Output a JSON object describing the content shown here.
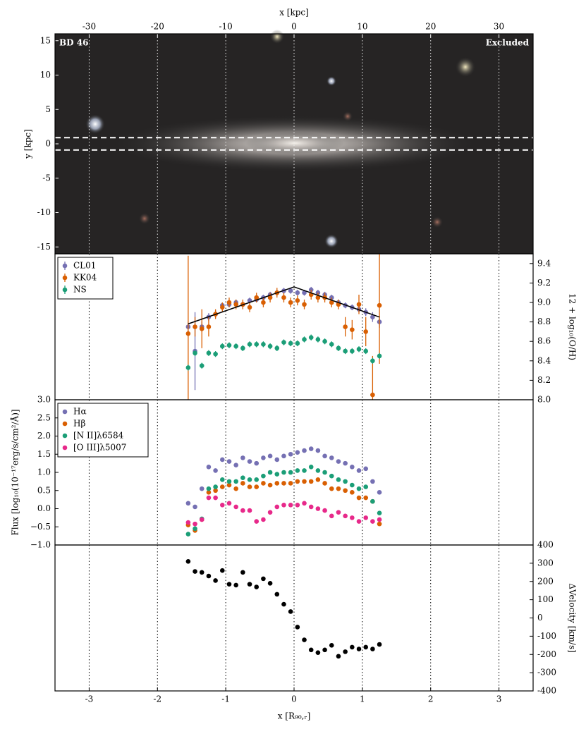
{
  "chart_data": [
    {
      "type": "image",
      "object": "BD 46",
      "status": "Excluded",
      "xlabel": "x [kpc]",
      "ylabel": "y [kpc]",
      "xlim": [
        -35,
        35
      ],
      "xticks": [
        -30,
        -20,
        -10,
        0,
        10,
        20,
        30
      ],
      "ylim": [
        -16,
        16
      ],
      "yticks": [
        -15,
        -10,
        -5,
        0,
        5,
        10,
        15
      ],
      "aperture_y": [
        -0.9,
        0.9
      ],
      "grid": true
    },
    {
      "type": "errorbar",
      "ylabel": "12 + log₁₀(O/H)",
      "yaxis": "right",
      "legend": "upper left",
      "ylim": [
        8.0,
        9.5
      ],
      "yticks": [
        {
          "value": 8.0,
          "label": "8.0"
        },
        8.2,
        8.4,
        8.6,
        8.8,
        {
          "value": 9.0,
          "label": "9.0"
        },
        9.2,
        9.4
      ],
      "x": [
        -1.55,
        -1.45,
        -1.35,
        -1.25,
        -1.15,
        -1.05,
        -0.95,
        -0.85,
        -0.75,
        -0.65,
        -0.55,
        -0.45,
        -0.35,
        -0.25,
        -0.15,
        -0.05,
        0.05,
        0.15,
        0.25,
        0.35,
        0.45,
        0.55,
        0.65,
        0.75,
        0.85,
        0.95,
        1.05,
        1.15,
        1.25
      ],
      "series": [
        {
          "name": "CL01",
          "color": "#7570b3",
          "values": [
            8.75,
            8.5,
            8.75,
            8.85,
            8.88,
            8.97,
            8.98,
            9.0,
            8.98,
            9.02,
            9.03,
            9.05,
            9.08,
            9.1,
            9.12,
            9.12,
            9.1,
            9.1,
            9.13,
            9.1,
            9.08,
            9.05,
            9.0,
            8.97,
            8.95,
            8.93,
            8.9,
            8.85,
            8.8
          ],
          "errors": [
            0.05,
            0.4,
            0.05,
            0.04,
            0.04,
            0.03,
            0.03,
            0.03,
            0.03,
            0.03,
            0.03,
            0.03,
            0.03,
            0.03,
            0.03,
            0.03,
            0.03,
            0.03,
            0.03,
            0.03,
            0.03,
            0.03,
            0.03,
            0.03,
            0.03,
            0.03,
            0.04,
            0.05,
            0.06
          ]
        },
        {
          "name": "KK04",
          "color": "#d95f02",
          "values": [
            8.68,
            8.75,
            8.73,
            8.75,
            8.88,
            8.95,
            9.0,
            8.98,
            8.98,
            8.95,
            9.05,
            9.0,
            9.05,
            9.1,
            9.05,
            9.0,
            9.02,
            8.98,
            9.08,
            9.05,
            9.05,
            9.0,
            8.98,
            8.75,
            8.72,
            8.98,
            8.7,
            8.05,
            8.97
          ],
          "errors": [
            0.8,
            0.1,
            0.2,
            0.1,
            0.05,
            0.05,
            0.05,
            0.05,
            0.05,
            0.05,
            0.05,
            0.05,
            0.05,
            0.05,
            0.05,
            0.05,
            0.05,
            0.05,
            0.05,
            0.05,
            0.05,
            0.05,
            0.05,
            0.1,
            0.1,
            0.1,
            0.15,
            0.4,
            0.6
          ]
        },
        {
          "name": "NS",
          "color": "#1b9e77",
          "values": [
            8.33,
            8.48,
            8.35,
            8.48,
            8.47,
            8.55,
            8.56,
            8.55,
            8.53,
            8.57,
            8.57,
            8.57,
            8.55,
            8.53,
            8.59,
            8.58,
            8.58,
            8.62,
            8.64,
            8.62,
            8.6,
            8.57,
            8.53,
            8.5,
            8.5,
            8.52,
            8.5,
            8.4,
            8.45
          ],
          "errors": [
            0.03,
            0.03,
            0.03,
            0.03,
            0.03,
            0.03,
            0.03,
            0.03,
            0.03,
            0.03,
            0.03,
            0.03,
            0.03,
            0.03,
            0.03,
            0.03,
            0.03,
            0.03,
            0.03,
            0.03,
            0.03,
            0.03,
            0.03,
            0.03,
            0.03,
            0.03,
            0.03,
            0.03,
            0.03
          ]
        }
      ],
      "fit": {
        "color": "#000000",
        "x": [
          -1.55,
          0,
          1.25
        ],
        "values": [
          8.78,
          9.16,
          8.85
        ]
      }
    },
    {
      "type": "scatter",
      "ylabel": "Flux [log₁₀(10⁻¹⁷erg/s/cm²/Å)]",
      "yaxis": "left",
      "legend": "upper left",
      "ylim": [
        -1.0,
        3.0
      ],
      "yticks": [
        {
          "value": -1.0,
          "label": "−1.0"
        },
        {
          "value": -0.5,
          "label": "−0.5"
        },
        {
          "value": 0.0,
          "label": "0.0"
        },
        0.5,
        {
          "value": 1.0,
          "label": "1.0"
        },
        1.5,
        {
          "value": 2.0,
          "label": "2.0"
        },
        2.5,
        {
          "value": 3.0,
          "label": "3.0"
        }
      ],
      "x": [
        -1.55,
        -1.45,
        -1.35,
        -1.25,
        -1.15,
        -1.05,
        -0.95,
        -0.85,
        -0.75,
        -0.65,
        -0.55,
        -0.45,
        -0.35,
        -0.25,
        -0.15,
        -0.05,
        0.05,
        0.15,
        0.25,
        0.35,
        0.45,
        0.55,
        0.65,
        0.75,
        0.85,
        0.95,
        1.05,
        1.15,
        1.25
      ],
      "series": [
        {
          "name": "Hα",
          "color": "#7570b3",
          "values": [
            0.15,
            0.05,
            0.55,
            1.15,
            1.05,
            1.35,
            1.3,
            1.2,
            1.4,
            1.3,
            1.25,
            1.4,
            1.45,
            1.35,
            1.45,
            1.5,
            1.55,
            1.6,
            1.65,
            1.6,
            1.45,
            1.4,
            1.3,
            1.25,
            1.15,
            1.05,
            1.1,
            0.75,
            0.45
          ]
        },
        {
          "name": "Hβ",
          "color": "#d95f02",
          "values": [
            -0.45,
            -0.6,
            -0.3,
            0.45,
            0.5,
            0.6,
            0.65,
            0.55,
            0.7,
            0.6,
            0.6,
            0.7,
            0.65,
            0.7,
            0.7,
            0.7,
            0.75,
            0.75,
            0.75,
            0.8,
            0.7,
            0.55,
            0.55,
            0.5,
            0.45,
            0.3,
            0.3,
            0.2,
            -0.42
          ]
        },
        {
          "name": "[N II]λ6584",
          "color": "#1b9e77",
          "values": [
            -0.7,
            -0.55,
            -0.28,
            0.55,
            0.6,
            0.8,
            0.75,
            0.75,
            0.85,
            0.8,
            0.8,
            0.9,
            1.0,
            0.95,
            1.0,
            1.0,
            1.05,
            1.05,
            1.15,
            1.05,
            1.0,
            0.9,
            0.8,
            0.75,
            0.65,
            0.55,
            0.6,
            0.2,
            -0.12
          ]
        },
        {
          "name": "[O III]λ5007",
          "color": "#e7298a",
          "values": [
            -0.38,
            -0.42,
            -0.3,
            0.3,
            0.3,
            0.1,
            0.15,
            0.05,
            -0.05,
            -0.05,
            -0.35,
            -0.3,
            -0.1,
            0.05,
            0.1,
            0.1,
            0.1,
            0.15,
            0.05,
            0.0,
            -0.05,
            -0.2,
            -0.1,
            -0.2,
            -0.25,
            -0.35,
            -0.25,
            -0.35,
            -0.3
          ]
        }
      ]
    },
    {
      "type": "scatter",
      "ylabel": "ΔVelocity [km/s]",
      "yaxis": "right",
      "xlabel": "x [R₉₀,ᵣ]",
      "xlim": [
        -3.5,
        3.5
      ],
      "xticks": [
        -3,
        -2,
        -1,
        0,
        1,
        2,
        3
      ],
      "ylim": [
        -400,
        400
      ],
      "yticks": [
        -400,
        -300,
        -200,
        -100,
        0,
        100,
        200,
        300,
        400
      ],
      "grid": true,
      "x": [
        -1.55,
        -1.45,
        -1.35,
        -1.25,
        -1.15,
        -1.05,
        -0.95,
        -0.85,
        -0.75,
        -0.65,
        -0.55,
        -0.45,
        -0.35,
        -0.25,
        -0.15,
        -0.05,
        0.05,
        0.15,
        0.25,
        0.35,
        0.45,
        0.55,
        0.65,
        0.75,
        0.85,
        0.95,
        1.05,
        1.15,
        1.25
      ],
      "series": [
        {
          "color": "#000000",
          "values": [
            310,
            255,
            250,
            230,
            205,
            260,
            185,
            180,
            250,
            185,
            170,
            215,
            190,
            130,
            75,
            35,
            -50,
            -120,
            -175,
            -190,
            -175,
            -150,
            -210,
            -185,
            -160,
            -170,
            -160,
            -170,
            -145
          ]
        }
      ]
    }
  ]
}
